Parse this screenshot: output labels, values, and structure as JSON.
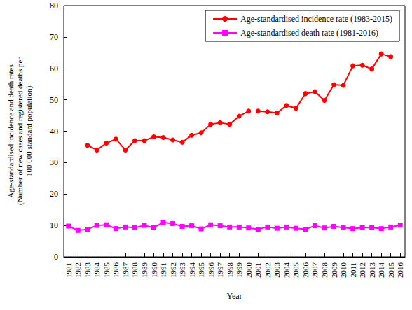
{
  "chart_data": {
    "type": "line",
    "x_label": "Year",
    "y_label": "Age-standardised incidence and death rates\n(Number of new cases and registered deaths per\n100 000 standard population)",
    "categories": [
      "1981",
      "1982",
      "1983",
      "1984",
      "1985",
      "1986",
      "1987",
      "1988",
      "1989",
      "1990",
      "1991",
      "1992",
      "1993",
      "1994",
      "1995",
      "1996",
      "1997",
      "1998",
      "1999",
      "2000",
      "2001",
      "2002",
      "2003",
      "2004",
      "2005",
      "2006",
      "2007",
      "2008",
      "2009",
      "2010",
      "2011",
      "2012",
      "2013",
      "2014",
      "2015",
      "2016"
    ],
    "series": [
      {
        "name": "Age-standardised incidence rate (1983-2015)",
        "color": "#ff0000",
        "marker": "circle",
        "line_style": "solid",
        "values": [
          null,
          null,
          35.5,
          34.0,
          36.2,
          37.5,
          34.0,
          37.0,
          37.0,
          38.2,
          38.0,
          37.2,
          36.5,
          38.7,
          39.5,
          42.2,
          42.7,
          42.2,
          44.8,
          46.4,
          null,
          null,
          null,
          null,
          null,
          null,
          null,
          null,
          null,
          null,
          null,
          null,
          null,
          null,
          null,
          null
        ]
      },
      {
        "name": "Age-standardised incidence rate (1983-2015)",
        "color": "#ff0000",
        "marker": "circle",
        "line_style": "solid",
        "values": [
          null,
          null,
          null,
          null,
          null,
          null,
          null,
          null,
          null,
          null,
          null,
          null,
          null,
          null,
          null,
          null,
          null,
          null,
          null,
          null,
          46.4,
          46.2,
          45.8,
          48.2,
          47.3,
          52.0,
          52.6,
          49.8,
          54.8,
          54.6,
          60.8,
          61.0,
          59.8,
          64.6,
          63.7,
          null
        ]
      },
      {
        "name": "Age-standardised death rate (1981-2016)",
        "color": "#ff00ff",
        "marker": "square",
        "line_style": "solid",
        "values": [
          9.8,
          8.4,
          8.8,
          10.0,
          10.2,
          9.0,
          9.5,
          9.3,
          10.0,
          9.3,
          11.0,
          10.6,
          9.7,
          9.9,
          8.9,
          10.2,
          9.9,
          9.5,
          9.5,
          9.2,
          8.8,
          9.5,
          9.1,
          9.5,
          9.1,
          8.8,
          9.9,
          9.2,
          9.7,
          9.3,
          9.0,
          9.3,
          9.3,
          9.0,
          9.5,
          10.1
        ]
      }
    ],
    "ylim": [
      0,
      80
    ],
    "yticks": [
      0,
      10,
      20,
      30,
      40,
      50,
      60,
      70,
      80
    ],
    "grid": false,
    "legend": "upper right"
  }
}
